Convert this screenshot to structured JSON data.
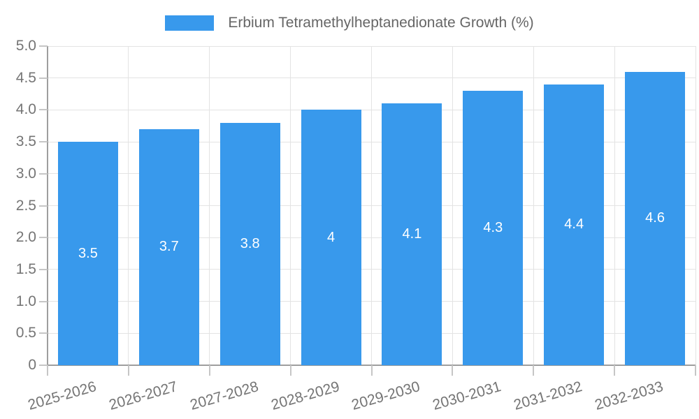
{
  "legend": {
    "label": "Erbium Tetramethylheptanedionate Growth (%)",
    "swatch_color": "#3899EC"
  },
  "chart_data": {
    "type": "bar",
    "title": "Erbium Tetramethylheptanedionate Growth (%)",
    "categories": [
      "2025-2026",
      "2026-2027",
      "2027-2028",
      "2028-2029",
      "2029-2030",
      "2030-2031",
      "2031-2032",
      "2032-2033"
    ],
    "values": [
      3.5,
      3.7,
      3.8,
      4,
      4.1,
      4.3,
      4.4,
      4.6
    ],
    "bar_labels": [
      "3.5",
      "3.7",
      "3.8",
      "4",
      "4.1",
      "4.3",
      "4.4",
      "4.6"
    ],
    "xlabel": "",
    "ylabel": "",
    "ylim": [
      0,
      5
    ],
    "yticks": [
      0,
      0.5,
      1,
      1.5,
      2,
      2.5,
      3,
      3.5,
      4,
      4.5,
      5
    ],
    "ytick_labels": [
      "0",
      "0.5",
      "1.0",
      "1.5",
      "2.0",
      "2.5",
      "3.0",
      "3.5",
      "4.0",
      "4.5",
      "5.0"
    ],
    "grid": true,
    "legend_position": "top-center",
    "bar_color": "#3899EC",
    "bar_label_color": "#ffffff"
  },
  "colors": {
    "background": "#ffffff",
    "grid": "#e3e3e3",
    "axis": "#9e9e9e",
    "tick": "#c6c6c6",
    "tick_text": "#757575",
    "legend_text": "#666666"
  }
}
